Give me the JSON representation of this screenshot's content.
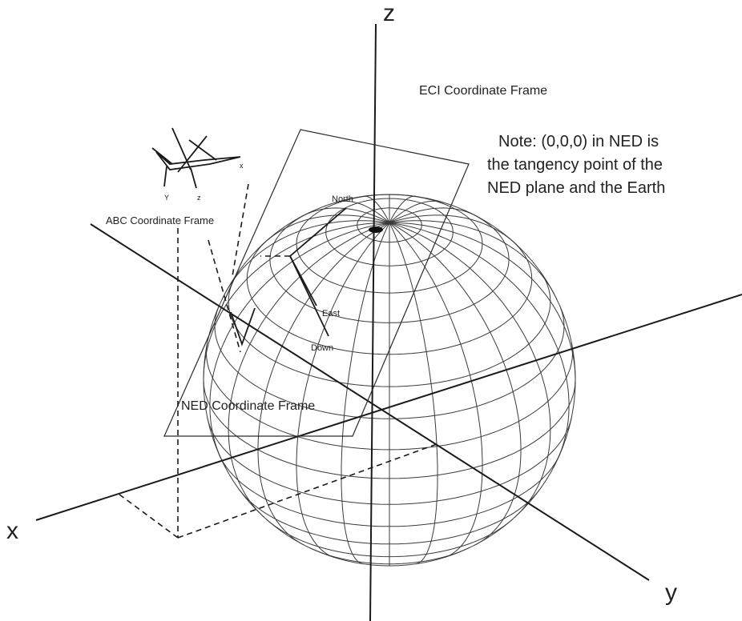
{
  "axes": {
    "z_label": "z",
    "x_label": "x",
    "y_label": "y"
  },
  "labels": {
    "eci": "ECI Coordinate Frame",
    "abc": "ABC Coordinate Frame",
    "ned": "NED Coordinate Frame",
    "north": "North",
    "east": "East",
    "down": "Down",
    "aircraft_x": "x",
    "aircraft_y": "Y",
    "aircraft_z": "z"
  },
  "note": {
    "line1": "Note:  (0,0,0) in NED is",
    "line2": "the tangency point of the",
    "line3": "NED plane and the Earth"
  }
}
